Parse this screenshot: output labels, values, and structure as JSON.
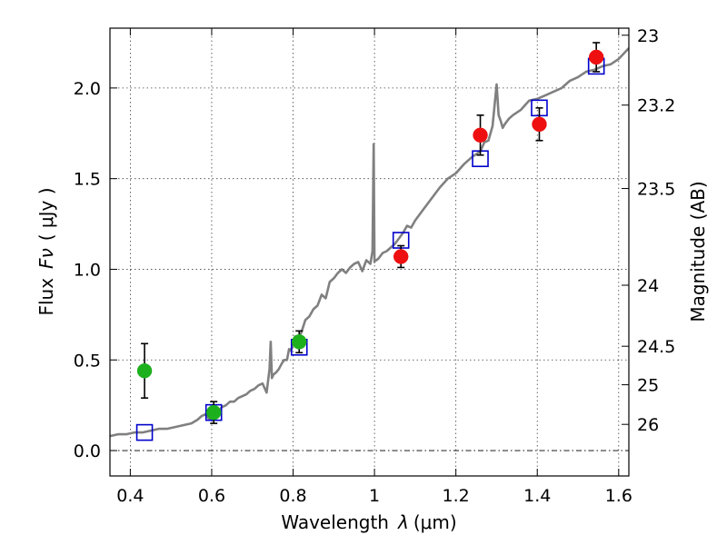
{
  "chart_data": {
    "type": "scatter",
    "xlabel_prefix": "Wavelength",
    "xlabel_symbol": "λ",
    "xlabel_unit": "(μm)",
    "ylabel_prefix": "Flux",
    "ylabel_symbol": "Fν",
    "ylabel_unit": "( μJy )",
    "y2label": "Magnitude (AB)",
    "xlim": [
      0.35,
      1.625
    ],
    "ylim": [
      -0.14,
      2.33
    ],
    "grid": true,
    "x_ticks": [
      {
        "value": 0.4,
        "label": "0.4"
      },
      {
        "value": 0.6,
        "label": "0.6"
      },
      {
        "value": 0.8,
        "label": "0.8"
      },
      {
        "value": 1.0,
        "label": "1"
      },
      {
        "value": 1.2,
        "label": "1.2"
      },
      {
        "value": 1.4,
        "label": "1.4"
      },
      {
        "value": 1.6,
        "label": "1.6"
      }
    ],
    "y_ticks": [
      {
        "value": 0.0,
        "label": "0.0"
      },
      {
        "value": 0.5,
        "label": "0.5"
      },
      {
        "value": 1.0,
        "label": "1.0"
      },
      {
        "value": 1.5,
        "label": "1.5"
      },
      {
        "value": 2.0,
        "label": "2.0"
      }
    ],
    "mag_ticks": [
      {
        "mag": 23,
        "label": "23"
      },
      {
        "mag": 23.2,
        "label": "23.2"
      },
      {
        "mag": 23.5,
        "label": "23.5"
      },
      {
        "mag": 24,
        "label": "24"
      },
      {
        "mag": 24.5,
        "label": "24.5"
      },
      {
        "mag": 25,
        "label": "25"
      },
      {
        "mag": 26,
        "label": "26"
      }
    ],
    "zero_line": {
      "value": 0.0,
      "style": "dash-dot",
      "color": "#000000"
    },
    "series": [
      {
        "name": "template-spectrum",
        "kind": "line",
        "color": "#808080",
        "x": [
          0.35,
          0.37,
          0.39,
          0.41,
          0.43,
          0.45,
          0.47,
          0.49,
          0.51,
          0.53,
          0.55,
          0.565,
          0.575,
          0.585,
          0.595,
          0.605,
          0.615,
          0.625,
          0.635,
          0.645,
          0.655,
          0.665,
          0.675,
          0.685,
          0.695,
          0.705,
          0.715,
          0.725,
          0.735,
          0.742,
          0.745,
          0.748,
          0.752,
          0.758,
          0.765,
          0.772,
          0.778,
          0.785,
          0.79,
          0.795,
          0.8,
          0.805,
          0.812,
          0.82,
          0.83,
          0.84,
          0.85,
          0.86,
          0.87,
          0.88,
          0.89,
          0.9,
          0.91,
          0.92,
          0.93,
          0.94,
          0.95,
          0.96,
          0.97,
          0.98,
          0.99,
          0.995,
          0.998,
          1.0,
          1.002,
          1.005,
          1.01,
          1.02,
          1.03,
          1.04,
          1.05,
          1.06,
          1.07,
          1.08,
          1.09,
          1.1,
          1.12,
          1.14,
          1.16,
          1.18,
          1.2,
          1.22,
          1.24,
          1.26,
          1.27,
          1.28,
          1.29,
          1.3,
          1.305,
          1.31,
          1.315,
          1.32,
          1.33,
          1.34,
          1.36,
          1.38,
          1.4,
          1.42,
          1.44,
          1.46,
          1.48,
          1.5,
          1.52,
          1.54,
          1.56,
          1.58,
          1.6,
          1.625
        ],
        "y": [
          0.08,
          0.09,
          0.09,
          0.1,
          0.1,
          0.11,
          0.12,
          0.12,
          0.13,
          0.14,
          0.15,
          0.17,
          0.19,
          0.2,
          0.17,
          0.22,
          0.21,
          0.24,
          0.25,
          0.27,
          0.27,
          0.29,
          0.3,
          0.31,
          0.33,
          0.34,
          0.36,
          0.37,
          0.32,
          0.45,
          0.6,
          0.4,
          0.42,
          0.43,
          0.45,
          0.48,
          0.5,
          0.5,
          0.56,
          0.55,
          0.6,
          0.63,
          0.62,
          0.65,
          0.72,
          0.74,
          0.78,
          0.8,
          0.86,
          0.84,
          0.93,
          0.95,
          0.98,
          1.0,
          0.98,
          1.01,
          1.03,
          1.04,
          0.99,
          1.05,
          1.03,
          1.1,
          1.69,
          1.04,
          1.05,
          1.05,
          1.06,
          1.09,
          1.1,
          1.12,
          1.14,
          1.17,
          1.2,
          1.24,
          1.23,
          1.27,
          1.33,
          1.39,
          1.45,
          1.5,
          1.53,
          1.58,
          1.62,
          1.65,
          1.7,
          1.71,
          1.79,
          2.02,
          1.85,
          1.82,
          1.78,
          1.8,
          1.83,
          1.85,
          1.88,
          1.93,
          1.94,
          1.96,
          1.98,
          2.0,
          2.04,
          2.06,
          2.09,
          2.1,
          2.12,
          2.13,
          2.16,
          2.22
        ]
      },
      {
        "name": "model-photometry",
        "kind": "open-square",
        "color": "#0000cc",
        "x": [
          0.435,
          0.605,
          0.815,
          1.065,
          1.26,
          1.405,
          1.545
        ],
        "y": [
          0.1,
          0.21,
          0.57,
          1.16,
          1.61,
          1.89,
          2.12
        ]
      },
      {
        "name": "observed-optical",
        "kind": "filled-circle",
        "color": "#1db01d",
        "x": [
          0.435,
          0.605,
          0.815
        ],
        "y": [
          0.44,
          0.21,
          0.6
        ],
        "err": [
          0.15,
          0.06,
          0.06
        ]
      },
      {
        "name": "observed-nir",
        "kind": "filled-circle",
        "color": "#ee1010",
        "x": [
          1.065,
          1.26,
          1.405,
          1.545
        ],
        "y": [
          1.07,
          1.74,
          1.8,
          2.17
        ],
        "err": [
          0.06,
          0.11,
          0.09,
          0.08
        ]
      }
    ]
  }
}
